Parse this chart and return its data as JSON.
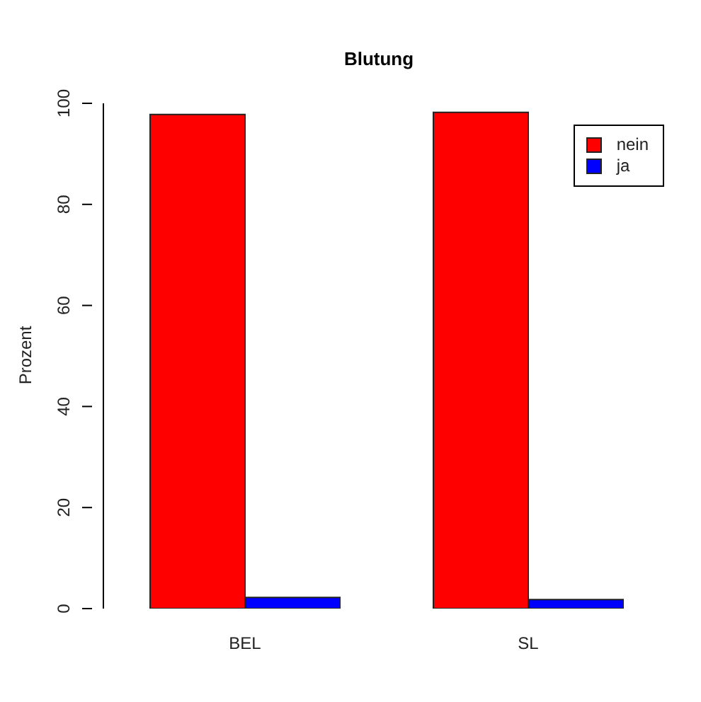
{
  "chart_data": {
    "type": "bar",
    "title": "Blutung",
    "ylabel": "Prozent",
    "categories": [
      "BEL",
      "SL"
    ],
    "series": [
      {
        "name": "nein",
        "color": "#ff0000",
        "values": [
          97.8,
          98.2
        ]
      },
      {
        "name": "ja",
        "color": "#0000ff",
        "values": [
          2.2,
          1.8
        ]
      }
    ],
    "ylim": [
      0,
      100
    ],
    "yticks": [
      0,
      20,
      40,
      60,
      80,
      100
    ],
    "grid": false,
    "legend": "top right"
  }
}
